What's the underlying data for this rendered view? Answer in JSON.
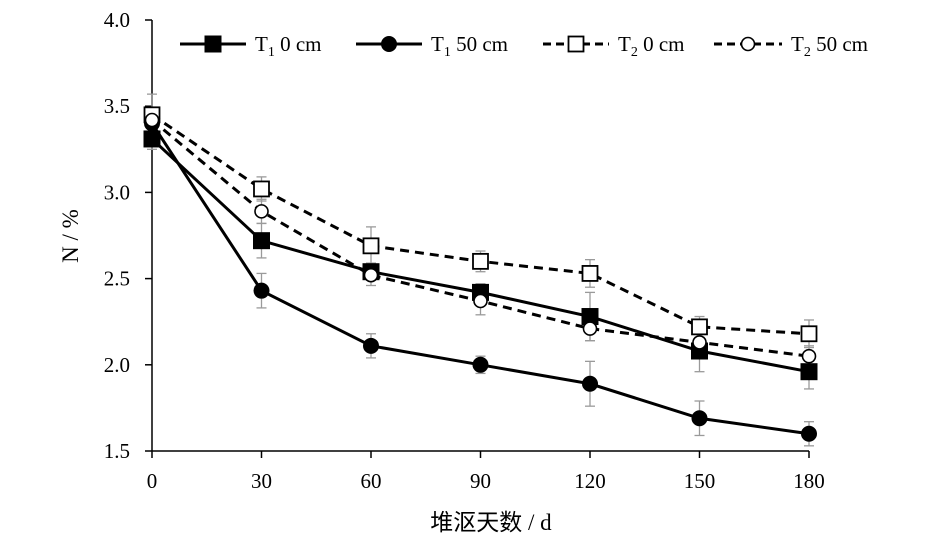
{
  "chart_data": {
    "type": "line",
    "xlabel": "堆沤天数 / d",
    "ylabel": "N / %",
    "x": [
      0,
      30,
      60,
      90,
      120,
      150,
      180
    ],
    "xticks": [
      "0",
      "30",
      "60",
      "90",
      "120",
      "150",
      "180"
    ],
    "yticks": [
      "1.5",
      "2.0",
      "2.5",
      "3.0",
      "3.5",
      "4.0"
    ],
    "ylim": [
      1.5,
      4.0
    ],
    "grid": false,
    "legend_position": "top",
    "series": [
      {
        "name": "T1 0 cm",
        "legend_main": "T",
        "legend_sub": "1",
        "legend_rest": " 0 cm",
        "line_style": "solid",
        "marker": "filled-square",
        "values": [
          3.31,
          2.72,
          2.54,
          2.42,
          2.28,
          2.08,
          1.96
        ],
        "errors": [
          0.06,
          0.1,
          0.05,
          0.05,
          0.14,
          0.12,
          0.1
        ]
      },
      {
        "name": "T1 50 cm",
        "legend_main": "T",
        "legend_sub": "1",
        "legend_rest": " 50 cm",
        "line_style": "solid",
        "marker": "filled-circle",
        "values": [
          3.4,
          2.43,
          2.11,
          2.0,
          1.89,
          1.69,
          1.6
        ],
        "errors": [
          0.06,
          0.1,
          0.07,
          0.05,
          0.13,
          0.1,
          0.07
        ]
      },
      {
        "name": "T2 0 cm",
        "legend_main": "T",
        "legend_sub": "2",
        "legend_rest": " 0 cm",
        "line_style": "dashed",
        "marker": "open-square",
        "values": [
          3.45,
          3.02,
          2.69,
          2.6,
          2.53,
          2.22,
          2.18
        ],
        "errors": [
          0.12,
          0.07,
          0.11,
          0.06,
          0.08,
          0.06,
          0.08
        ]
      },
      {
        "name": "T2 50 cm",
        "legend_main": "T",
        "legend_sub": "2",
        "legend_rest": " 50 cm",
        "line_style": "dashed",
        "marker": "open-circle",
        "values": [
          3.42,
          2.89,
          2.52,
          2.37,
          2.21,
          2.13,
          2.05
        ],
        "errors": [
          0.05,
          0.07,
          0.06,
          0.08,
          0.07,
          0.05,
          0.06
        ]
      }
    ],
    "colors": {
      "line": "#000000",
      "error_bar": "#9a9a9a",
      "background": "#ffffff"
    }
  }
}
